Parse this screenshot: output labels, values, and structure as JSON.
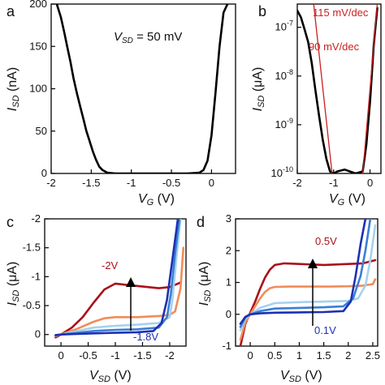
{
  "chart_data": [
    {
      "panel": "a",
      "type": "line",
      "panel_label": "a",
      "xlabel": "V_G (V)",
      "ylabel": "I_SD (nA)",
      "xlim": [
        -2,
        0.3
      ],
      "ylim": [
        0,
        200
      ],
      "xticks": [
        "-2",
        "-1.5",
        "-1",
        "-0.5",
        "0"
      ],
      "yticks": [
        "0",
        "50",
        "100",
        "150",
        "200"
      ],
      "annotation": "V_SD = 50 mV",
      "series": [
        {
          "color": "#000000",
          "x": [
            -1.93,
            -1.88,
            -1.84,
            -1.8,
            -1.76,
            -1.72,
            -1.68,
            -1.64,
            -1.6,
            -1.56,
            -1.52,
            -1.48,
            -1.44,
            -1.4,
            -1.36,
            -1.3,
            -1.2,
            -1.0,
            -0.6,
            -0.3,
            -0.15,
            -0.1,
            -0.05,
            0.0,
            0.05,
            0.1,
            0.15,
            0.2
          ],
          "y": [
            200,
            185,
            168,
            150,
            132,
            112,
            95,
            80,
            65,
            50,
            38,
            26,
            16,
            8,
            4,
            1,
            0,
            0,
            0,
            0,
            1,
            4,
            15,
            45,
            95,
            150,
            190,
            200
          ]
        }
      ]
    },
    {
      "panel": "b",
      "type": "line",
      "panel_label": "b",
      "xlabel": "V_G (V)",
      "ylabel": "I_SD (μA)",
      "xlim": [
        -2,
        0.3
      ],
      "ylim": [
        1e-10,
        3e-07
      ],
      "yscale": "log",
      "xticks": [
        "-2",
        "-1",
        "0"
      ],
      "yticks": [
        "10^-10",
        "10^-9",
        "10^-8",
        "10^-7"
      ],
      "annotations": [
        "115 mV/dec",
        "90 mV/dec"
      ],
      "series": [
        {
          "color": "#000000",
          "x": [
            -2.0,
            -1.9,
            -1.8,
            -1.7,
            -1.6,
            -1.5,
            -1.4,
            -1.3,
            -1.2,
            -1.1,
            -1.0,
            -0.9,
            -0.7,
            -0.4,
            -0.2,
            -0.1,
            0.0,
            0.1,
            0.2
          ],
          "y": [
            2.2e-07,
            1.6e-07,
            9e-08,
            5e-08,
            1.8e-08,
            5e-09,
            1.5e-09,
            5e-10,
            2e-10,
            1.1e-10,
            1e-10,
            1.1e-10,
            1.2e-10,
            1e-10,
            1.1e-10,
            4e-10,
            3e-09,
            4e-08,
            2.5e-07
          ]
        },
        {
          "name": "115 mV/dec",
          "color": "#cc1f1f",
          "x": [
            -1.55,
            -1.0
          ],
          "y": [
            3e-07,
            5e-11
          ]
        },
        {
          "name": "90 mV/dec",
          "color": "#cc1f1f",
          "x": [
            -0.2,
            0.2
          ],
          "y": [
            1e-10,
            3e-07
          ]
        }
      ]
    },
    {
      "panel": "c",
      "type": "line",
      "panel_label": "c",
      "xlabel": "V_SD (V)",
      "ylabel": "I_SD (μA)",
      "xlim": [
        0.3,
        -2.3
      ],
      "ylim": [
        0.2,
        -2
      ],
      "xticks": [
        "0",
        "-0.5",
        "-1",
        "-1.5",
        "-2"
      ],
      "yticks": [
        "0",
        "-0.5",
        "-1",
        "-1.5",
        "-2"
      ],
      "annotations": [
        "-2V",
        "-1.8V"
      ],
      "series": [
        {
          "color": "#a8111c",
          "x": [
            0.1,
            0.0,
            -0.2,
            -0.4,
            -0.6,
            -0.8,
            -1.0,
            -1.2,
            -1.4,
            -1.6,
            -1.8,
            -2.0,
            -2.1,
            -2.2
          ],
          "y": [
            0.05,
            0.0,
            -0.12,
            -0.3,
            -0.55,
            -0.78,
            -0.88,
            -0.86,
            -0.84,
            -0.82,
            -0.8,
            -0.82,
            -0.86,
            -0.9
          ]
        },
        {
          "color": "#f08c5a",
          "x": [
            0.1,
            0.0,
            -0.3,
            -0.6,
            -0.8,
            -1.0,
            -1.2,
            -1.4,
            -1.6,
            -1.8,
            -2.0,
            -2.1,
            -2.2,
            -2.25
          ],
          "y": [
            0.03,
            0.0,
            -0.1,
            -0.22,
            -0.28,
            -0.3,
            -0.3,
            -0.3,
            -0.31,
            -0.32,
            -0.34,
            -0.4,
            -0.8,
            -1.5
          ]
        },
        {
          "color": "#a6d1ef",
          "x": [
            0.1,
            0.0,
            -0.3,
            -0.6,
            -1.0,
            -1.4,
            -1.8,
            -2.0,
            -2.05,
            -2.12,
            -2.2
          ],
          "y": [
            0.02,
            0.0,
            -0.06,
            -0.12,
            -0.15,
            -0.17,
            -0.2,
            -0.3,
            -0.6,
            -1.3,
            -2.0
          ]
        },
        {
          "color": "#3a7fd5",
          "x": [
            0.1,
            0.0,
            -0.3,
            -0.6,
            -1.0,
            -1.4,
            -1.8,
            -1.95,
            -2.02,
            -2.1,
            -2.18
          ],
          "y": [
            0.02,
            0.0,
            -0.03,
            -0.06,
            -0.08,
            -0.09,
            -0.12,
            -0.3,
            -0.7,
            -1.4,
            -2.0
          ]
        },
        {
          "color": "#1d2fb3",
          "x": [
            0.1,
            0.0,
            -0.3,
            -0.6,
            -1.0,
            -1.4,
            -1.7,
            -1.85,
            -1.95,
            -2.05,
            -2.15
          ],
          "y": [
            0.01,
            0.0,
            -0.01,
            -0.02,
            -0.03,
            -0.04,
            -0.06,
            -0.2,
            -0.6,
            -1.3,
            -2.0
          ]
        }
      ]
    },
    {
      "panel": "d",
      "type": "line",
      "panel_label": "d",
      "xlabel": "V_SD (V)",
      "ylabel": "I_SD (μA)",
      "xlim": [
        -0.3,
        2.6
      ],
      "ylim": [
        -1,
        3
      ],
      "xticks": [
        "0",
        "0.5",
        "1",
        "1.5",
        "2",
        "2.5"
      ],
      "yticks": [
        "-1",
        "0",
        "1",
        "2",
        "3"
      ],
      "annotations": [
        "0.5V",
        "0.1V"
      ],
      "series": [
        {
          "color": "#a8111c",
          "x": [
            -0.2,
            -0.1,
            0.0,
            0.1,
            0.2,
            0.3,
            0.4,
            0.5,
            0.7,
            1.0,
            1.5,
            2.0,
            2.3,
            2.55
          ],
          "y": [
            -1.0,
            -0.3,
            0.05,
            0.4,
            0.8,
            1.15,
            1.4,
            1.55,
            1.6,
            1.58,
            1.55,
            1.58,
            1.6,
            1.7
          ]
        },
        {
          "color": "#f08c5a",
          "x": [
            -0.2,
            -0.1,
            0.0,
            0.1,
            0.2,
            0.3,
            0.4,
            0.5,
            0.8,
            1.2,
            1.6,
            2.0,
            2.3,
            2.5,
            2.55
          ],
          "y": [
            -0.8,
            -0.25,
            0.0,
            0.25,
            0.5,
            0.7,
            0.82,
            0.86,
            0.87,
            0.87,
            0.87,
            0.88,
            0.9,
            0.95,
            1.1
          ]
        },
        {
          "color": "#a6d1ef",
          "x": [
            -0.2,
            -0.1,
            0.0,
            0.2,
            0.5,
            1.0,
            1.5,
            2.0,
            2.2,
            2.35,
            2.45,
            2.55
          ],
          "y": [
            -0.5,
            -0.15,
            0.0,
            0.2,
            0.35,
            0.38,
            0.4,
            0.42,
            0.5,
            0.9,
            1.7,
            2.8
          ]
        },
        {
          "color": "#3a7fd5",
          "x": [
            -0.2,
            -0.1,
            0.0,
            0.2,
            0.5,
            1.0,
            1.5,
            1.9,
            2.1,
            2.25,
            2.35,
            2.45
          ],
          "y": [
            -0.4,
            -0.1,
            0.0,
            0.1,
            0.18,
            0.2,
            0.22,
            0.25,
            0.5,
            1.2,
            2.0,
            3.0
          ]
        },
        {
          "color": "#1d2fb3",
          "x": [
            -0.2,
            -0.1,
            0.0,
            0.2,
            0.5,
            1.0,
            1.5,
            1.9,
            2.05,
            2.15,
            2.25,
            2.35
          ],
          "y": [
            -0.3,
            -0.08,
            0.0,
            0.03,
            0.05,
            0.06,
            0.07,
            0.1,
            0.4,
            1.2,
            2.2,
            3.0
          ]
        }
      ]
    }
  ]
}
